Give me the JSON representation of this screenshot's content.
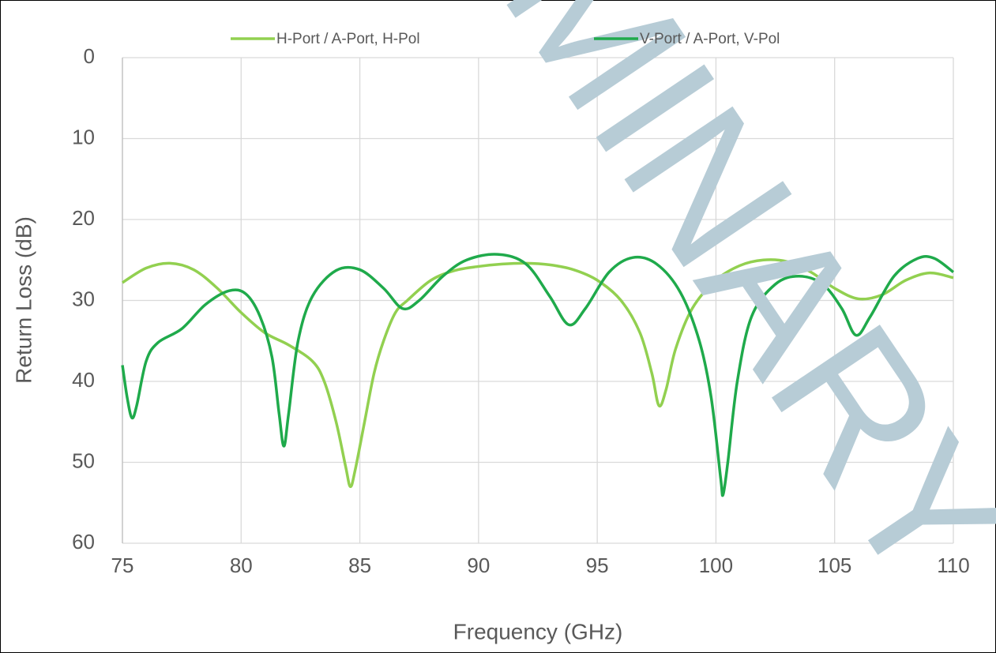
{
  "chart_data": {
    "type": "line",
    "x_label": "Frequency (GHz)",
    "y_label": "Return Loss (dB)",
    "watermark": "PRELIMINARY",
    "xlim": [
      75,
      110
    ],
    "xticks": [
      75,
      80,
      85,
      90,
      95,
      100,
      105,
      110
    ],
    "ylim": [
      0,
      60
    ],
    "yticks": [
      0,
      10,
      20,
      30,
      40,
      50,
      60
    ],
    "y_inverted": true,
    "grid": true,
    "legend": "top",
    "series": [
      {
        "name": "H-Port / A-Port, H-Pol",
        "color": "#92d050",
        "x": [
          75,
          76,
          77,
          78,
          79,
          80,
          81,
          82,
          83,
          83.5,
          84,
          84.4,
          84.6,
          84.8,
          85.2,
          85.6,
          86,
          86.5,
          87,
          88,
          89,
          90,
          91,
          92,
          93,
          94,
          95,
          96,
          96.8,
          97.3,
          97.6,
          97.9,
          98.3,
          99,
          100,
          101,
          102,
          103,
          104,
          105,
          106,
          107,
          108,
          109,
          110
        ],
        "values": [
          27.8,
          26,
          25.4,
          26.2,
          28.5,
          31.5,
          34,
          35.5,
          37.5,
          40,
          45,
          50.5,
          53,
          51,
          45,
          39,
          35,
          31.5,
          30,
          27.5,
          26.3,
          25.8,
          25.5,
          25.4,
          25.6,
          26.2,
          27.5,
          30,
          34,
          39,
          43,
          41,
          36,
          31,
          27.5,
          25.7,
          25,
          25.2,
          26.5,
          28.5,
          29.8,
          29.3,
          27.5,
          26.6,
          27.2
        ]
      },
      {
        "name": "V-Port / A-Port, V-Pol",
        "color": "#1faa4b",
        "x": [
          75,
          75.2,
          75.4,
          75.6,
          76,
          76.5,
          77.5,
          78.5,
          79.5,
          80.2,
          80.8,
          81.3,
          81.6,
          81.8,
          82,
          82.4,
          83,
          84,
          85,
          86,
          86.8,
          87.5,
          88.5,
          89.5,
          90.8,
          92,
          93,
          93.8,
          94.5,
          95.5,
          96.5,
          97.5,
          98.5,
          99.3,
          99.8,
          100.2,
          100.3,
          100.5,
          100.9,
          101.5,
          102.5,
          103.5,
          104.5,
          105.3,
          105.9,
          106.5,
          107.5,
          108.5,
          109.2,
          110
        ],
        "values": [
          38,
          42,
          44.5,
          43,
          37.5,
          35.2,
          33.5,
          30.5,
          28.8,
          29.2,
          32,
          37,
          44,
          48,
          44,
          35,
          29.5,
          26.3,
          26.2,
          28.5,
          31,
          30,
          27,
          25,
          24.3,
          25.5,
          29.5,
          33,
          31,
          26.5,
          24.7,
          25.5,
          29,
          35,
          42,
          52,
          54,
          50,
          40,
          32,
          28,
          27,
          28,
          31,
          34.3,
          32,
          27,
          24.8,
          24.8,
          26.5
        ]
      }
    ]
  }
}
